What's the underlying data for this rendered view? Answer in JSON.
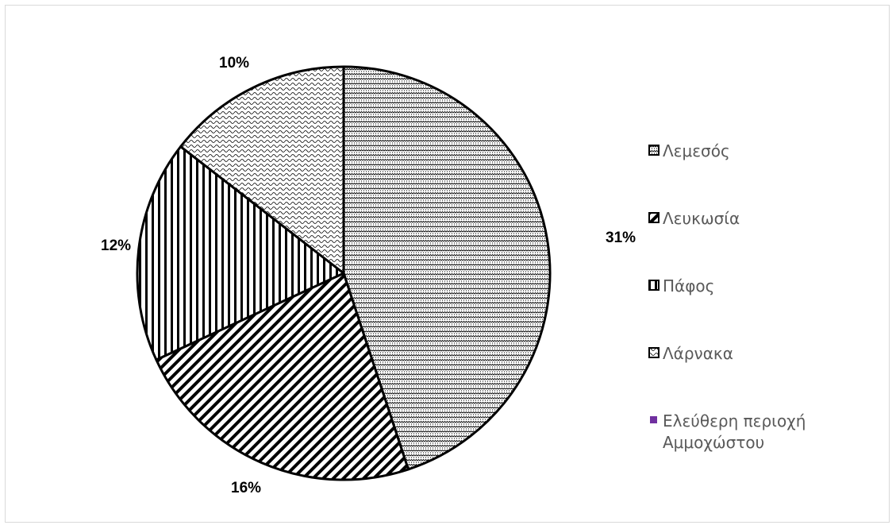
{
  "chart_data": {
    "type": "pie",
    "series": [
      {
        "name": "Λεμεσός",
        "value": 31,
        "label": "31%",
        "pattern": "dots"
      },
      {
        "name": "Λευκωσία",
        "value": 16,
        "label": "16%",
        "pattern": "diagonal"
      },
      {
        "name": "Πάφος",
        "value": 12,
        "label": "12%",
        "pattern": "vertical"
      },
      {
        "name": "Λάρνακα",
        "value": 10,
        "label": "10%",
        "pattern": "wave"
      },
      {
        "name": "Ελεύθερη περιοχή Αμμοχώστου",
        "value": 0,
        "label": "",
        "pattern": "solid"
      }
    ],
    "legend_position": "right",
    "colors": {
      "stroke": "#000000",
      "label": "#000000",
      "legend_text": "#595959",
      "solid_swatch": "#7030a0"
    }
  }
}
